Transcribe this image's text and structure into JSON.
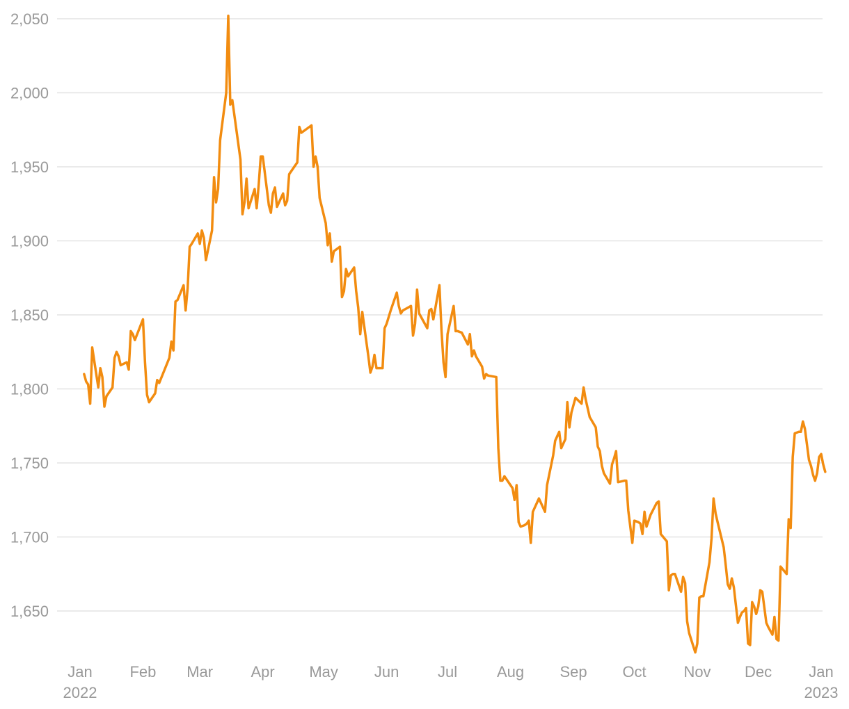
{
  "chart_data": {
    "type": "line",
    "title": "",
    "xlabel": "",
    "ylabel": "",
    "xlim": [
      "2021-12-26",
      "2023-01-03"
    ],
    "ylim": [
      1620,
      2055
    ],
    "grid": true,
    "legend": "none",
    "colors": {
      "line": "#f28c10",
      "grid": "#e3e3e3",
      "tick_text": "#999999"
    },
    "y_ticks": [
      {
        "value": 1650,
        "label": "1,650"
      },
      {
        "value": 1700,
        "label": "1,700"
      },
      {
        "value": 1750,
        "label": "1,750"
      },
      {
        "value": 1800,
        "label": "1,800"
      },
      {
        "value": 1850,
        "label": "1,850"
      },
      {
        "value": 1900,
        "label": "1,900"
      },
      {
        "value": 1950,
        "label": "1,950"
      },
      {
        "value": 2000,
        "label": "2,000"
      },
      {
        "value": 2050,
        "label": "2,050"
      }
    ],
    "x_ticks": [
      {
        "date": "2022-01-01",
        "label": "Jan",
        "sublabel": "2022"
      },
      {
        "date": "2022-02-01",
        "label": "Feb"
      },
      {
        "date": "2022-03-01",
        "label": "Mar"
      },
      {
        "date": "2022-04-01",
        "label": "Apr"
      },
      {
        "date": "2022-05-01",
        "label": "May"
      },
      {
        "date": "2022-06-01",
        "label": "Jun"
      },
      {
        "date": "2022-07-01",
        "label": "Jul"
      },
      {
        "date": "2022-08-01",
        "label": "Aug"
      },
      {
        "date": "2022-09-01",
        "label": "Sep"
      },
      {
        "date": "2022-10-01",
        "label": "Oct"
      },
      {
        "date": "2022-11-01",
        "label": "Nov"
      },
      {
        "date": "2022-12-01",
        "label": "Dec"
      },
      {
        "date": "2023-01-01",
        "label": "Jan",
        "sublabel": "2023"
      }
    ],
    "series": [
      {
        "points": [
          [
            "2022-01-03",
            1810
          ],
          [
            "2022-01-04",
            1805
          ],
          [
            "2022-01-05",
            1803
          ],
          [
            "2022-01-06",
            1790
          ],
          [
            "2022-01-07",
            1828
          ],
          [
            "2022-01-10",
            1801
          ],
          [
            "2022-01-11",
            1814
          ],
          [
            "2022-01-12",
            1808
          ],
          [
            "2022-01-13",
            1788
          ],
          [
            "2022-01-14",
            1795
          ],
          [
            "2022-01-17",
            1801
          ],
          [
            "2022-01-18",
            1821
          ],
          [
            "2022-01-19",
            1825
          ],
          [
            "2022-01-20",
            1822
          ],
          [
            "2022-01-21",
            1816
          ],
          [
            "2022-01-24",
            1818
          ],
          [
            "2022-01-25",
            1813
          ],
          [
            "2022-01-26",
            1839
          ],
          [
            "2022-01-27",
            1837
          ],
          [
            "2022-01-28",
            1833
          ],
          [
            "2022-02-01",
            1847
          ],
          [
            "2022-02-02",
            1818
          ],
          [
            "2022-02-03",
            1796
          ],
          [
            "2022-02-04",
            1791
          ],
          [
            "2022-02-07",
            1797
          ],
          [
            "2022-02-08",
            1806
          ],
          [
            "2022-02-09",
            1804
          ],
          [
            "2022-02-14",
            1821
          ],
          [
            "2022-02-15",
            1832
          ],
          [
            "2022-02-16",
            1826
          ],
          [
            "2022-02-17",
            1859
          ],
          [
            "2022-02-18",
            1860
          ],
          [
            "2022-02-21",
            1870
          ],
          [
            "2022-02-22",
            1853
          ],
          [
            "2022-02-23",
            1868
          ],
          [
            "2022-02-24",
            1896
          ],
          [
            "2022-02-25",
            1898
          ],
          [
            "2022-02-28",
            1905
          ],
          [
            "2022-03-01",
            1898
          ],
          [
            "2022-03-02",
            1907
          ],
          [
            "2022-03-03",
            1902
          ],
          [
            "2022-03-04",
            1887
          ],
          [
            "2022-03-07",
            1907
          ],
          [
            "2022-03-08",
            1943
          ],
          [
            "2022-03-09",
            1926
          ],
          [
            "2022-03-10",
            1935
          ],
          [
            "2022-03-11",
            1968
          ],
          [
            "2022-03-14",
            2000
          ],
          [
            "2022-03-15",
            2052
          ],
          [
            "2022-03-16",
            1992
          ],
          [
            "2022-03-17",
            1995
          ],
          [
            "2022-03-21",
            1955
          ],
          [
            "2022-03-22",
            1918
          ],
          [
            "2022-03-23",
            1926
          ],
          [
            "2022-03-24",
            1942
          ],
          [
            "2022-03-25",
            1922
          ],
          [
            "2022-03-28",
            1935
          ],
          [
            "2022-03-29",
            1922
          ],
          [
            "2022-03-30",
            1938
          ],
          [
            "2022-03-31",
            1957
          ],
          [
            "2022-04-01",
            1957
          ],
          [
            "2022-04-04",
            1924
          ],
          [
            "2022-04-05",
            1919
          ],
          [
            "2022-04-06",
            1932
          ],
          [
            "2022-04-07",
            1936
          ],
          [
            "2022-04-08",
            1923
          ],
          [
            "2022-04-11",
            1932
          ],
          [
            "2022-04-12",
            1924
          ],
          [
            "2022-04-13",
            1927
          ],
          [
            "2022-04-14",
            1945
          ],
          [
            "2022-04-18",
            1953
          ],
          [
            "2022-04-19",
            1977
          ],
          [
            "2022-04-20",
            1973
          ],
          [
            "2022-04-25",
            1978
          ],
          [
            "2022-04-26",
            1950
          ],
          [
            "2022-04-27",
            1957
          ],
          [
            "2022-04-28",
            1950
          ],
          [
            "2022-04-29",
            1929
          ],
          [
            "2022-05-02",
            1912
          ],
          [
            "2022-05-03",
            1897
          ],
          [
            "2022-05-04",
            1905
          ],
          [
            "2022-05-05",
            1886
          ],
          [
            "2022-05-06",
            1893
          ],
          [
            "2022-05-09",
            1896
          ],
          [
            "2022-05-10",
            1862
          ],
          [
            "2022-05-11",
            1866
          ],
          [
            "2022-05-12",
            1881
          ],
          [
            "2022-05-13",
            1876
          ],
          [
            "2022-05-16",
            1882
          ],
          [
            "2022-05-17",
            1866
          ],
          [
            "2022-05-18",
            1855
          ],
          [
            "2022-05-19",
            1837
          ],
          [
            "2022-05-20",
            1852
          ],
          [
            "2022-05-23",
            1822
          ],
          [
            "2022-05-24",
            1811
          ],
          [
            "2022-05-25",
            1815
          ],
          [
            "2022-05-26",
            1823
          ],
          [
            "2022-05-27",
            1814
          ],
          [
            "2022-05-30",
            1814
          ],
          [
            "2022-05-31",
            1841
          ],
          [
            "2022-06-01",
            1844
          ],
          [
            "2022-06-03",
            1853
          ],
          [
            "2022-06-06",
            1865
          ],
          [
            "2022-06-07",
            1856
          ],
          [
            "2022-06-08",
            1851
          ],
          [
            "2022-06-09",
            1853
          ],
          [
            "2022-06-13",
            1856
          ],
          [
            "2022-06-14",
            1836
          ],
          [
            "2022-06-15",
            1844
          ],
          [
            "2022-06-16",
            1867
          ],
          [
            "2022-06-17",
            1851
          ],
          [
            "2022-06-21",
            1841
          ],
          [
            "2022-06-22",
            1853
          ],
          [
            "2022-06-23",
            1854
          ],
          [
            "2022-06-24",
            1847
          ],
          [
            "2022-06-27",
            1870
          ],
          [
            "2022-06-28",
            1840
          ],
          [
            "2022-06-29",
            1818
          ],
          [
            "2022-06-30",
            1808
          ],
          [
            "2022-07-01",
            1837
          ],
          [
            "2022-07-04",
            1856
          ],
          [
            "2022-07-05",
            1839
          ],
          [
            "2022-07-06",
            1839
          ],
          [
            "2022-07-08",
            1838
          ],
          [
            "2022-07-11",
            1830
          ],
          [
            "2022-07-12",
            1837
          ],
          [
            "2022-07-13",
            1822
          ],
          [
            "2022-07-14",
            1826
          ],
          [
            "2022-07-15",
            1822
          ],
          [
            "2022-07-18",
            1815
          ],
          [
            "2022-07-19",
            1807
          ],
          [
            "2022-07-20",
            1810
          ],
          [
            "2022-07-21",
            1809
          ],
          [
            "2022-07-25",
            1808
          ],
          [
            "2022-07-26",
            1760
          ],
          [
            "2022-07-27",
            1738
          ],
          [
            "2022-07-28",
            1738
          ],
          [
            "2022-07-29",
            1741
          ],
          [
            "2022-08-02",
            1733
          ],
          [
            "2022-08-03",
            1725
          ],
          [
            "2022-08-04",
            1735
          ],
          [
            "2022-08-05",
            1710
          ],
          [
            "2022-08-06",
            1707
          ],
          [
            "2022-08-08",
            1708
          ],
          [
            "2022-08-09",
            1709
          ],
          [
            "2022-08-10",
            1711
          ],
          [
            "2022-08-11",
            1696
          ],
          [
            "2022-08-12",
            1717
          ],
          [
            "2022-08-15",
            1726
          ],
          [
            "2022-08-18",
            1717
          ],
          [
            "2022-08-19",
            1735
          ],
          [
            "2022-08-22",
            1755
          ],
          [
            "2022-08-23",
            1765
          ],
          [
            "2022-08-24",
            1768
          ],
          [
            "2022-08-25",
            1771
          ],
          [
            "2022-08-26",
            1760
          ],
          [
            "2022-08-28",
            1766
          ],
          [
            "2022-08-29",
            1791
          ],
          [
            "2022-08-30",
            1774
          ],
          [
            "2022-08-31",
            1784
          ],
          [
            "2022-09-02",
            1794
          ],
          [
            "2022-09-05",
            1790
          ],
          [
            "2022-09-06",
            1801
          ],
          [
            "2022-09-07",
            1793
          ],
          [
            "2022-09-09",
            1781
          ],
          [
            "2022-09-12",
            1774
          ],
          [
            "2022-09-13",
            1761
          ],
          [
            "2022-09-14",
            1758
          ],
          [
            "2022-09-15",
            1748
          ],
          [
            "2022-09-16",
            1743
          ],
          [
            "2022-09-19",
            1736
          ],
          [
            "2022-09-20",
            1749
          ],
          [
            "2022-09-21",
            1753
          ],
          [
            "2022-09-22",
            1758
          ],
          [
            "2022-09-23",
            1737
          ],
          [
            "2022-09-26",
            1738
          ],
          [
            "2022-09-27",
            1738
          ],
          [
            "2022-09-28",
            1718
          ],
          [
            "2022-09-30",
            1696
          ],
          [
            "2022-10-01",
            1711
          ],
          [
            "2022-10-03",
            1710
          ],
          [
            "2022-10-04",
            1709
          ],
          [
            "2022-10-05",
            1702
          ],
          [
            "2022-10-06",
            1717
          ],
          [
            "2022-10-07",
            1707
          ],
          [
            "2022-10-09",
            1715
          ],
          [
            "2022-10-12",
            1723
          ],
          [
            "2022-10-13",
            1724
          ],
          [
            "2022-10-14",
            1702
          ],
          [
            "2022-10-17",
            1697
          ],
          [
            "2022-10-18",
            1664
          ],
          [
            "2022-10-19",
            1674
          ],
          [
            "2022-10-20",
            1675
          ],
          [
            "2022-10-21",
            1675
          ],
          [
            "2022-10-24",
            1663
          ],
          [
            "2022-10-25",
            1673
          ],
          [
            "2022-10-26",
            1669
          ],
          [
            "2022-10-27",
            1643
          ],
          [
            "2022-10-28",
            1635
          ],
          [
            "2022-10-31",
            1622
          ],
          [
            "2022-11-01",
            1628
          ],
          [
            "2022-11-02",
            1659
          ],
          [
            "2022-11-03",
            1660
          ],
          [
            "2022-11-04",
            1660
          ],
          [
            "2022-11-07",
            1683
          ],
          [
            "2022-11-08",
            1699
          ],
          [
            "2022-11-09",
            1726
          ],
          [
            "2022-11-10",
            1716
          ],
          [
            "2022-11-11",
            1710
          ],
          [
            "2022-11-14",
            1693
          ],
          [
            "2022-11-15",
            1681
          ],
          [
            "2022-11-16",
            1668
          ],
          [
            "2022-11-17",
            1665
          ],
          [
            "2022-11-18",
            1672
          ],
          [
            "2022-11-19",
            1666
          ],
          [
            "2022-11-21",
            1642
          ],
          [
            "2022-11-22",
            1646
          ],
          [
            "2022-11-23",
            1649
          ],
          [
            "2022-11-24",
            1650
          ],
          [
            "2022-11-25",
            1652
          ],
          [
            "2022-11-26",
            1628
          ],
          [
            "2022-11-27",
            1627
          ],
          [
            "2022-11-28",
            1656
          ],
          [
            "2022-11-29",
            1653
          ],
          [
            "2022-11-30",
            1648
          ],
          [
            "2022-12-01",
            1653
          ],
          [
            "2022-12-02",
            1664
          ],
          [
            "2022-12-03",
            1663
          ],
          [
            "2022-12-05",
            1642
          ],
          [
            "2022-12-06",
            1639
          ],
          [
            "2022-12-08",
            1634
          ],
          [
            "2022-12-09",
            1646
          ],
          [
            "2022-12-10",
            1631
          ],
          [
            "2022-12-11",
            1630
          ],
          [
            "2022-12-12",
            1680
          ],
          [
            "2022-12-15",
            1675
          ],
          [
            "2022-12-16",
            1712
          ],
          [
            "2022-12-17",
            1706
          ],
          [
            "2022-12-18",
            1754
          ],
          [
            "2022-12-19",
            1770
          ],
          [
            "2022-12-21",
            1771
          ],
          [
            "2022-12-22",
            1771
          ],
          [
            "2022-12-23",
            1778
          ],
          [
            "2022-12-24",
            1773
          ],
          [
            "2022-12-26",
            1752
          ],
          [
            "2022-12-27",
            1748
          ],
          [
            "2022-12-28",
            1742
          ],
          [
            "2022-12-29",
            1738
          ],
          [
            "2022-12-30",
            1743
          ],
          [
            "2022-12-31",
            1754
          ],
          [
            "2023-01-01",
            1756
          ],
          [
            "2023-01-02",
            1749
          ],
          [
            "2023-01-03",
            1744
          ]
        ]
      }
    ]
  }
}
